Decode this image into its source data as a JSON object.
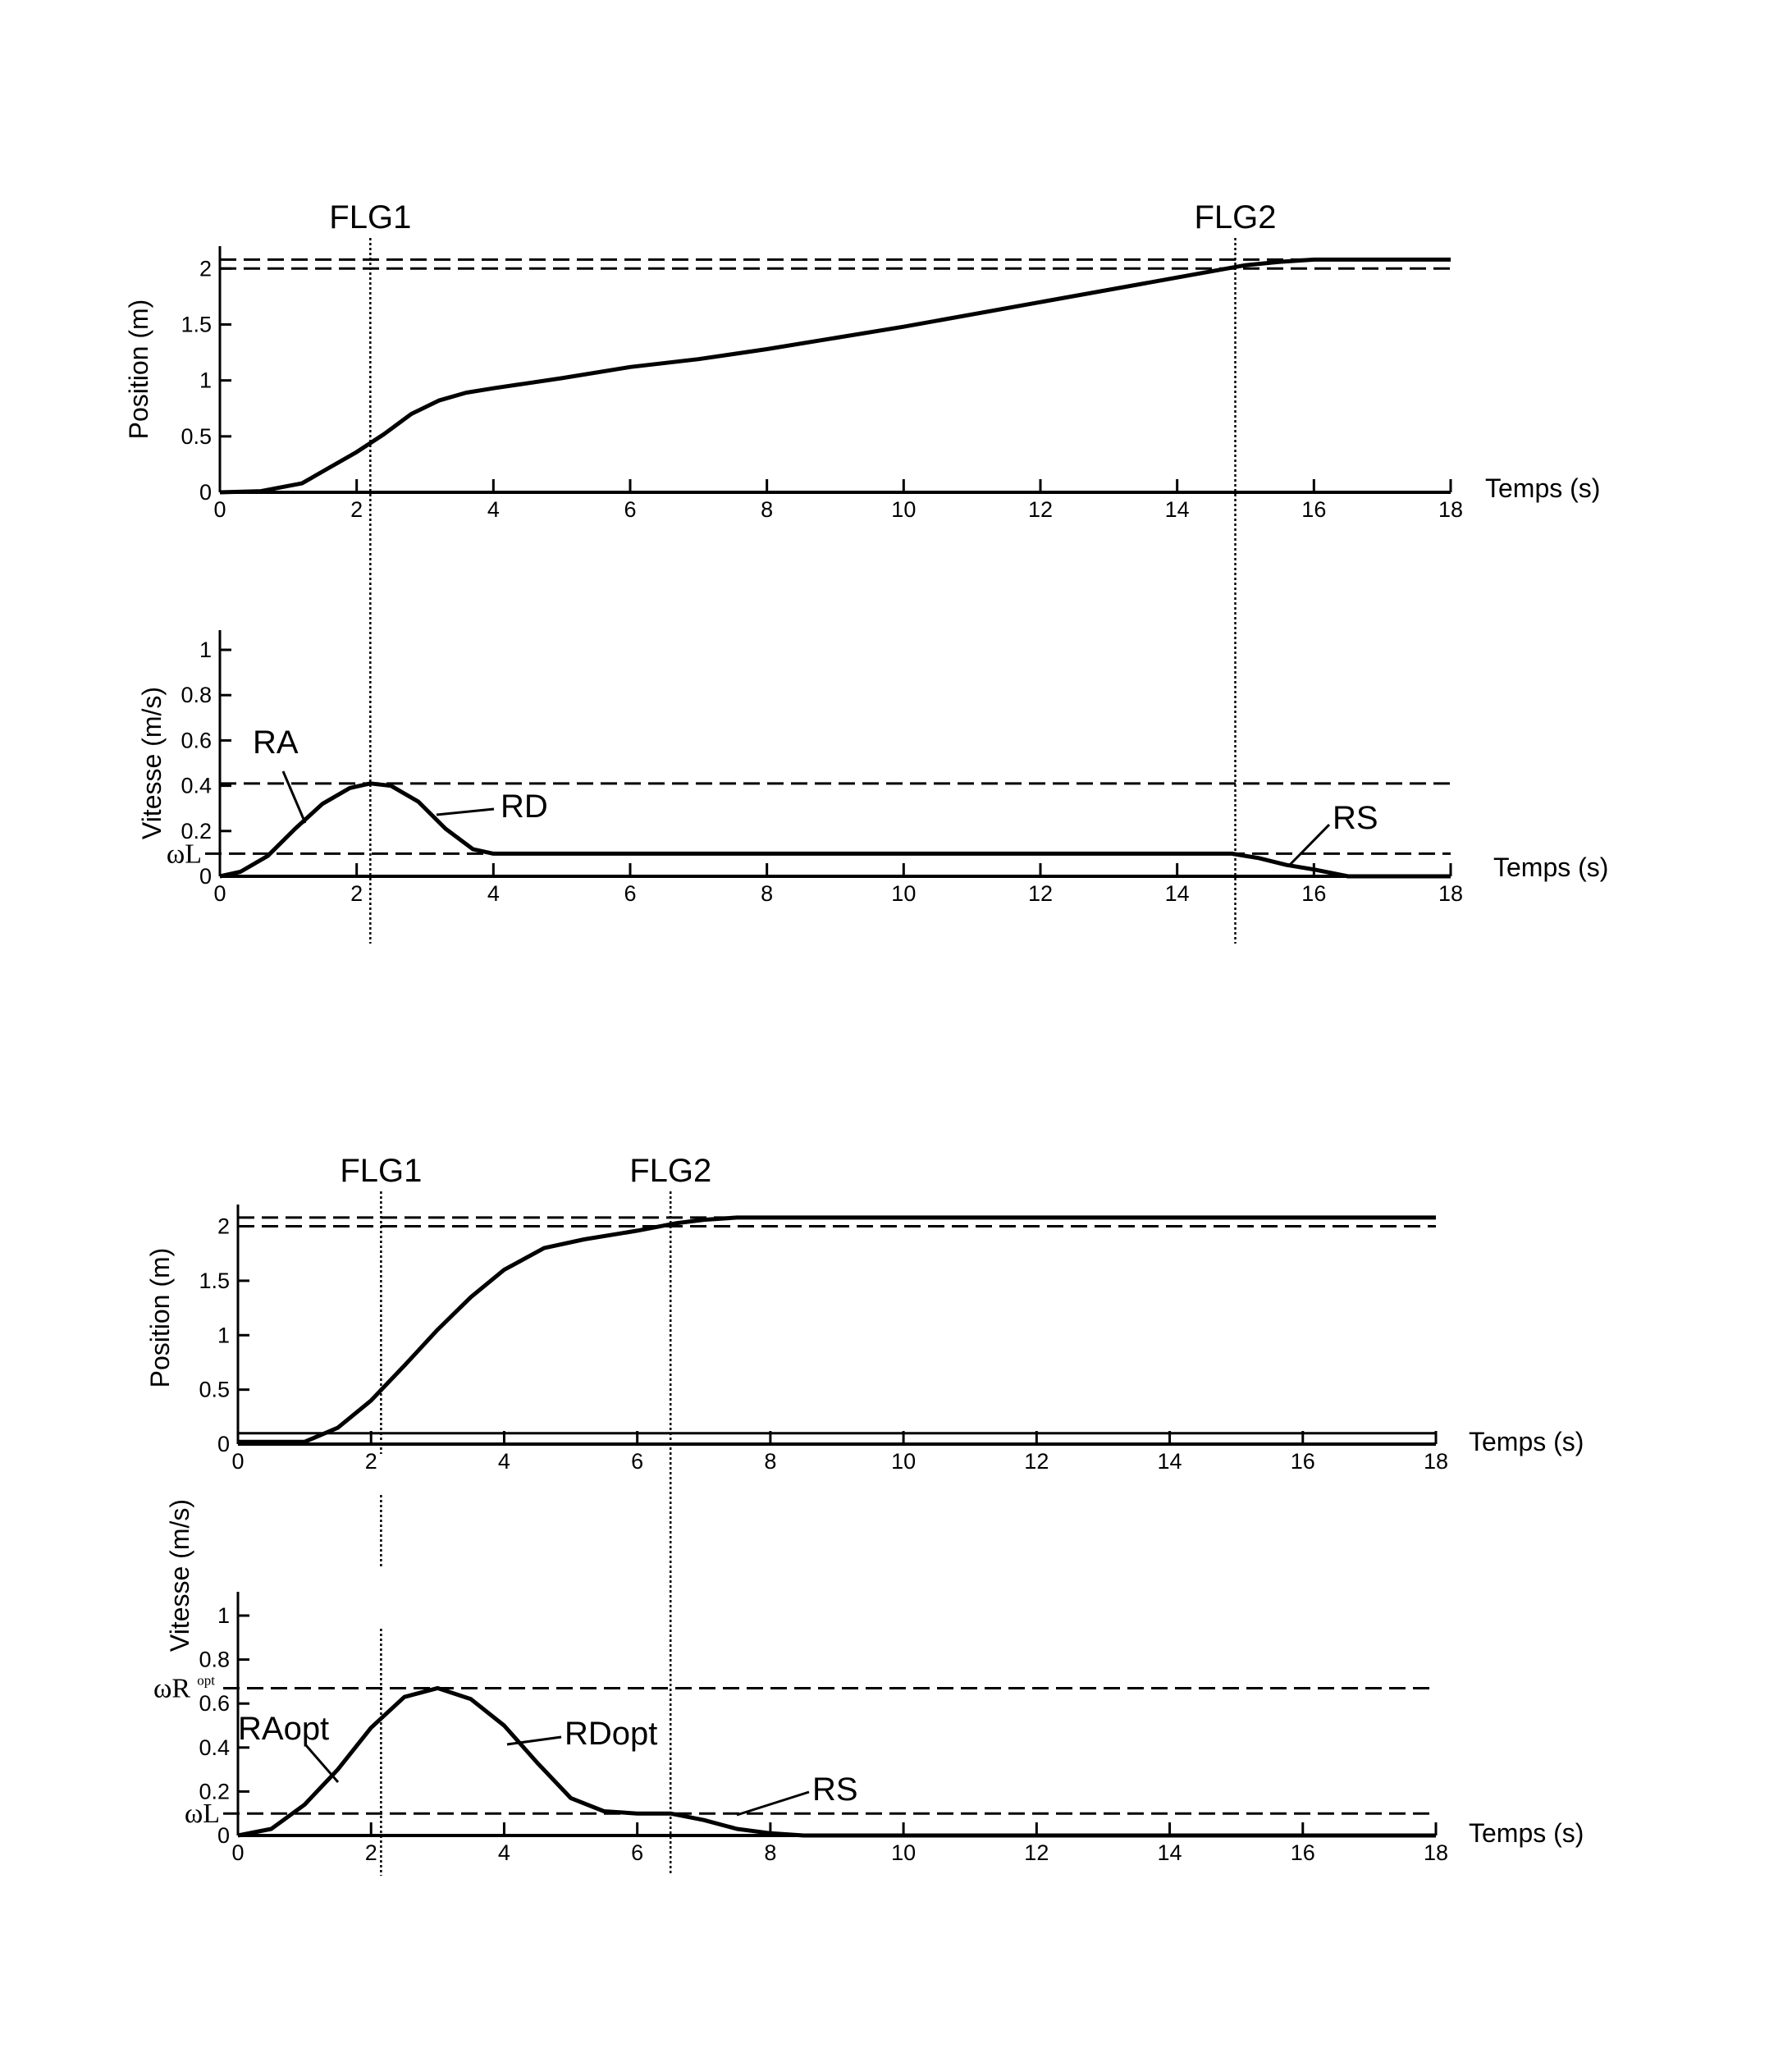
{
  "chart_data": [
    {
      "type": "line",
      "panel": "top-position",
      "xlabel": "Temps (s)",
      "ylabel": "Position (m)",
      "xlim": [
        0,
        18
      ],
      "ylim": [
        0,
        2.2
      ],
      "xticks": [
        "0",
        "2",
        "4",
        "6",
        "8",
        "10",
        "12",
        "14",
        "16",
        "18"
      ],
      "yticks": [
        "0",
        "0.5",
        "1",
        "1.5",
        "2"
      ],
      "reference_lines": [
        2.0,
        2.08
      ],
      "markers": [
        {
          "label": "FLG1",
          "x": 2.2
        },
        {
          "label": "FLG2",
          "x": 14.85
        }
      ],
      "series": [
        {
          "x": [
            0,
            0.6,
            1.2,
            1.6,
            2.0,
            2.4,
            2.8,
            3.2,
            3.6,
            4.0,
            5.0,
            6.0,
            7.0,
            8.0,
            10.0,
            12.0,
            14.0,
            15.0,
            15.5,
            16.0,
            17.0,
            18.0
          ],
          "y": [
            0,
            0.01,
            0.08,
            0.22,
            0.36,
            0.52,
            0.7,
            0.82,
            0.89,
            0.93,
            1.02,
            1.12,
            1.19,
            1.28,
            1.48,
            1.7,
            1.92,
            2.03,
            2.06,
            2.08,
            2.08,
            2.08
          ]
        }
      ]
    },
    {
      "type": "line",
      "panel": "top-speed",
      "xlabel": "Temps (s)",
      "ylabel": "Vitesse (m/s)",
      "xlim": [
        0,
        18
      ],
      "ylim": [
        0,
        1
      ],
      "xticks": [
        "0",
        "2",
        "4",
        "6",
        "8",
        "10",
        "12",
        "14",
        "16",
        "18"
      ],
      "yticks": [
        "0",
        "0.2",
        "0.4",
        "0.6",
        "0.8",
        "1"
      ],
      "reference_lines": [
        {
          "y": 0.41,
          "label": ""
        },
        {
          "y": 0.1,
          "label": "ωL"
        }
      ],
      "annotations": [
        {
          "text": "RA",
          "at_x": 1.1
        },
        {
          "text": "RD",
          "at_x": 3.0
        },
        {
          "text": "RS",
          "at_x": 15.8
        }
      ],
      "series": [
        {
          "x": [
            0,
            0.3,
            0.7,
            1.1,
            1.5,
            1.9,
            2.2,
            2.5,
            2.9,
            3.3,
            3.7,
            4.0,
            10.0,
            14.8,
            15.2,
            15.6,
            16.0,
            16.5,
            17.0,
            18.0
          ],
          "y": [
            0,
            0.02,
            0.09,
            0.21,
            0.32,
            0.39,
            0.41,
            0.4,
            0.33,
            0.21,
            0.12,
            0.1,
            0.1,
            0.1,
            0.08,
            0.05,
            0.03,
            0.0,
            0.0,
            0.0
          ]
        }
      ]
    },
    {
      "type": "line",
      "panel": "bottom-position",
      "xlabel": "Temps (s)",
      "ylabel": "Position (m)",
      "xlim": [
        0,
        18
      ],
      "ylim": [
        0,
        2.2
      ],
      "xticks": [
        "0",
        "2",
        "4",
        "6",
        "8",
        "10",
        "12",
        "14",
        "16",
        "18"
      ],
      "yticks": [
        "0",
        "0.5",
        "1",
        "1.5",
        "2"
      ],
      "reference_lines": [
        2.0,
        2.08
      ],
      "baseline_y": 0.1,
      "markers": [
        {
          "label": "FLG1",
          "x": 2.15
        },
        {
          "label": "FLG2",
          "x": 6.5
        }
      ],
      "series": [
        {
          "x": [
            0,
            1.0,
            1.5,
            2.0,
            2.5,
            3.0,
            3.5,
            4.0,
            4.6,
            5.2,
            6.0,
            6.6,
            7.0,
            7.5,
            8.0,
            18.0
          ],
          "y": [
            0.02,
            0.02,
            0.15,
            0.4,
            0.72,
            1.05,
            1.35,
            1.6,
            1.8,
            1.88,
            1.96,
            2.03,
            2.06,
            2.08,
            2.08,
            2.08
          ]
        }
      ]
    },
    {
      "type": "line",
      "panel": "bottom-speed",
      "xlabel": "Temps (s)",
      "ylabel": "Vitesse (m/s)",
      "xlim": [
        0,
        18
      ],
      "ylim": [
        0,
        1
      ],
      "xticks": [
        "0",
        "2",
        "4",
        "6",
        "8",
        "10",
        "12",
        "14",
        "16",
        "18"
      ],
      "yticks": [
        "0",
        "0.2",
        "0.4",
        "0.6",
        "0.8",
        "1"
      ],
      "reference_lines": [
        {
          "y": 0.67,
          "label": "ωR",
          "sup": "opt"
        },
        {
          "y": 0.1,
          "label": "ωL"
        }
      ],
      "annotations": [
        {
          "text": "RAopt",
          "at_x": 1.4
        },
        {
          "text": "RDopt",
          "at_x": 4.2
        },
        {
          "text": "RS",
          "at_x": 7.3
        }
      ],
      "series": [
        {
          "x": [
            0,
            0.5,
            1.0,
            1.5,
            2.0,
            2.5,
            3.0,
            3.5,
            4.0,
            4.5,
            5.0,
            5.5,
            6.0,
            6.5,
            7.0,
            7.5,
            8.0,
            8.5,
            18.0
          ],
          "y": [
            0,
            0.03,
            0.14,
            0.3,
            0.49,
            0.63,
            0.67,
            0.62,
            0.5,
            0.33,
            0.17,
            0.11,
            0.1,
            0.1,
            0.07,
            0.03,
            0.01,
            0.0,
            0.0
          ]
        }
      ]
    }
  ]
}
